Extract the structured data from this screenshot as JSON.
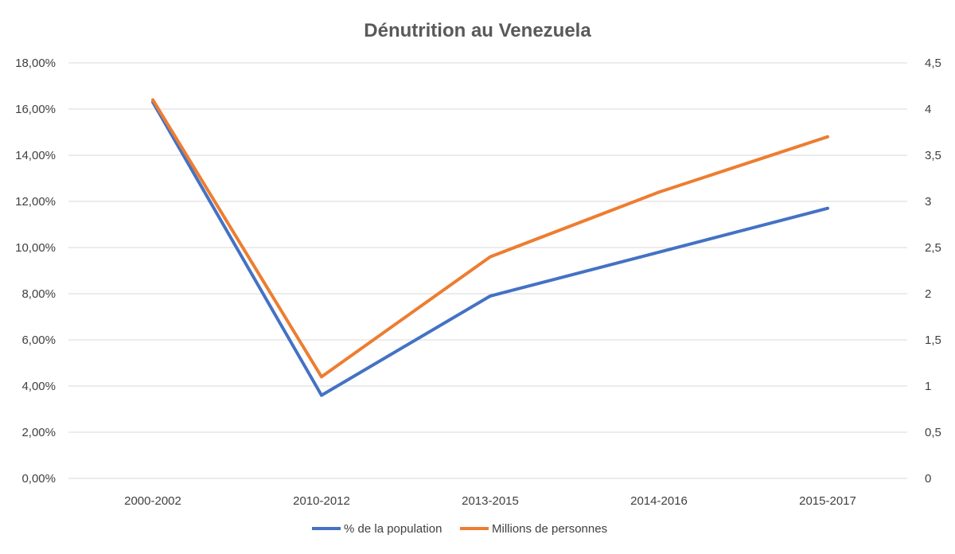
{
  "chart_data": {
    "type": "line",
    "title": "Dénutrition au Venezuela",
    "categories": [
      "2000-2002",
      "2010-2012",
      "2013-2015",
      "2014-2016",
      "2015-2017"
    ],
    "series": [
      {
        "name": "% de la population",
        "axis": "left",
        "color": "#4472C4",
        "values": [
          16.3,
          3.6,
          7.9,
          9.8,
          11.7
        ]
      },
      {
        "name": "Millions de personnes",
        "axis": "right",
        "color": "#ED7D31",
        "values": [
          4.1,
          1.1,
          2.4,
          3.1,
          3.7
        ]
      }
    ],
    "y_left": {
      "min": 0,
      "max": 18,
      "ticks": [
        0,
        2,
        4,
        6,
        8,
        10,
        12,
        14,
        16,
        18
      ],
      "tick_labels": [
        "0,00%",
        "2,00%",
        "4,00%",
        "6,00%",
        "8,00%",
        "10,00%",
        "12,00%",
        "14,00%",
        "16,00%",
        "18,00%"
      ]
    },
    "y_right": {
      "min": 0,
      "max": 4.5,
      "ticks": [
        0,
        0.5,
        1,
        1.5,
        2,
        2.5,
        3,
        3.5,
        4,
        4.5
      ],
      "tick_labels": [
        "0",
        "0,5",
        "1",
        "1,5",
        "2",
        "2,5",
        "3",
        "3,5",
        "4",
        "4,5"
      ]
    },
    "grid": true,
    "legend_position": "bottom"
  }
}
